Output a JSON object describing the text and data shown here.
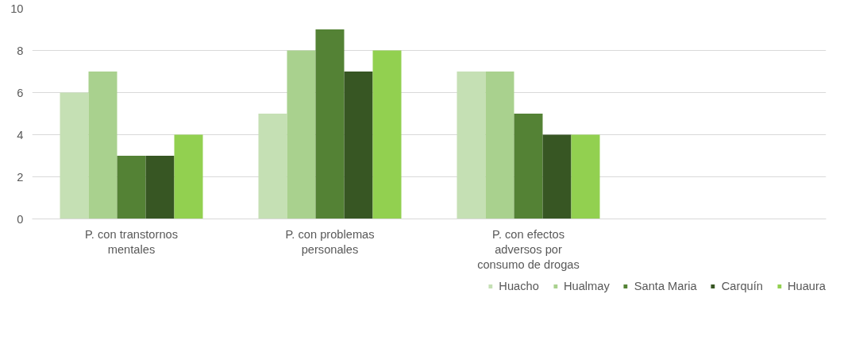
{
  "chart_data": {
    "type": "bar",
    "categories": [
      "P. con transtornos mentales",
      "P. con problemas personales",
      "P. con efectos adversos por consumo de drogas",
      null
    ],
    "series": [
      {
        "name": "Huacho",
        "color": "#c5e0b4",
        "values": [
          6,
          5,
          7,
          null
        ]
      },
      {
        "name": "Hualmay",
        "color": "#a9d18e",
        "values": [
          7,
          8,
          7,
          null
        ]
      },
      {
        "name": "Santa Maria",
        "color": "#548235",
        "values": [
          3,
          9,
          5,
          null
        ]
      },
      {
        "name": "Carquín",
        "color": "#375623",
        "values": [
          3,
          7,
          4,
          null
        ]
      },
      {
        "name": "Huaura",
        "color": "#92d050",
        "values": [
          4,
          8,
          4,
          null
        ]
      }
    ],
    "ylim": [
      0,
      10
    ],
    "yticks": [
      0,
      2,
      4,
      6,
      8,
      10
    ],
    "grid": "y",
    "legend": "bottom"
  }
}
